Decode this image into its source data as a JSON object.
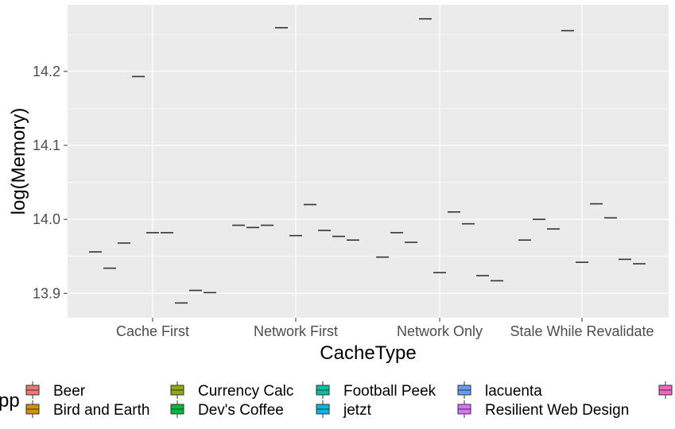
{
  "chart_data": {
    "type": "boxplot",
    "xlabel": "CacheType",
    "ylabel": "log(Memory)",
    "categories": [
      "Cache First",
      "Network First",
      "Network Only",
      "Stale While Revalidate"
    ],
    "yticks": [
      13.9,
      14.0,
      14.1,
      14.2
    ],
    "ylim": [
      13.867,
      14.29
    ],
    "grid": true,
    "legend_position": "bottom",
    "legend_title": "pp",
    "series": [
      {
        "name": "Beer",
        "color": "#F8766D",
        "values": [
          13.956,
          13.992,
          13.949,
          13.972
        ]
      },
      {
        "name": "Bird and Earth",
        "color": "#D39200",
        "values": [
          13.934,
          13.989,
          13.982,
          14.0
        ]
      },
      {
        "name": "Currency Calc",
        "color": "#93AA00",
        "values": [
          13.968,
          13.992,
          13.969,
          13.987
        ]
      },
      {
        "name": "Dev's Coffee",
        "color": "#00BA38",
        "values": [
          14.193,
          14.259,
          14.271,
          14.255
        ]
      },
      {
        "name": "Football Peek",
        "color": "#00C19F",
        "values": [
          13.982,
          13.978,
          13.928,
          13.942
        ]
      },
      {
        "name": "jetzt",
        "color": "#00B9E3",
        "values": [
          13.982,
          14.02,
          14.01,
          14.021
        ]
      },
      {
        "name": "lacuenta",
        "color": "#619CFF",
        "values": [
          13.887,
          13.985,
          13.994,
          14.002
        ]
      },
      {
        "name": "Resilient Web Design",
        "color": "#DB72FB",
        "values": [
          13.904,
          13.977,
          13.924,
          13.946
        ]
      },
      {
        "name": "",
        "color": "#FF61C3",
        "values": [
          13.901,
          13.972,
          13.917,
          13.94
        ]
      }
    ]
  }
}
